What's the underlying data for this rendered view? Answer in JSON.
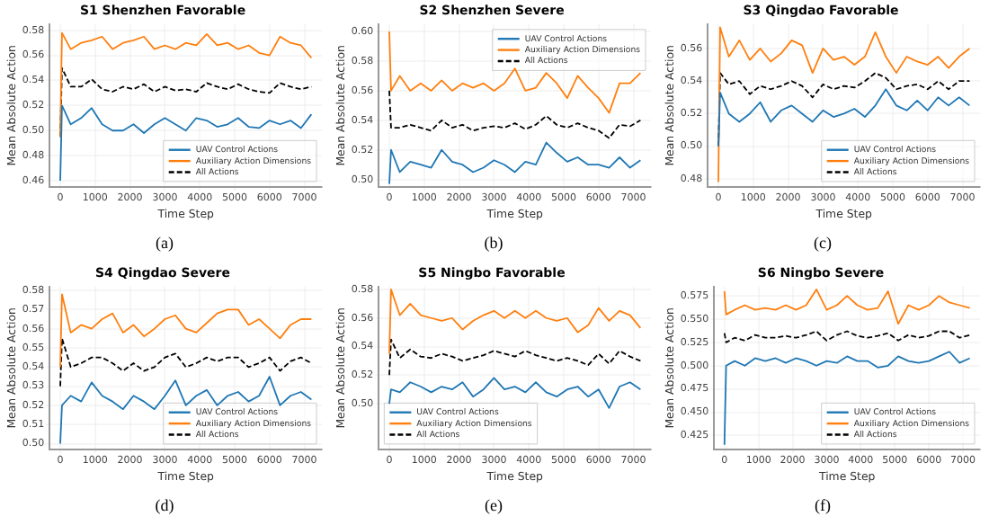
{
  "chart_data": [
    {
      "type": "line",
      "title": "S1 Shenzhen Favorable",
      "xlabel": "Time Step",
      "ylabel": "Mean Absolute Action",
      "annotations": [
        "(a)"
      ],
      "grid": true,
      "legend": "bottom right",
      "xlim": [
        -300,
        7500
      ],
      "xticks": [
        0,
        1000,
        2000,
        3000,
        4000,
        5000,
        6000,
        7000
      ],
      "ylim": [
        0.455,
        0.585
      ],
      "yticks": [
        0.46,
        0.48,
        {
          "value": 0.5,
          "label": "0.50"
        },
        0.52,
        0.54,
        0.56,
        0.58
      ],
      "x": [
        0,
        50,
        300,
        600,
        900,
        1200,
        1500,
        1800,
        2100,
        2400,
        2700,
        3000,
        3300,
        3600,
        3900,
        4200,
        4500,
        4800,
        5100,
        5400,
        5700,
        6000,
        6300,
        6600,
        6900,
        7200
      ],
      "series": [
        {
          "name": "UAV Control Actions",
          "color": "#1f77b4",
          "values": [
            0.46,
            0.52,
            0.505,
            0.51,
            0.518,
            0.505,
            0.5,
            0.5,
            0.505,
            0.498,
            0.505,
            0.51,
            0.505,
            0.5,
            0.51,
            0.508,
            0.503,
            0.505,
            0.51,
            0.503,
            0.502,
            0.508,
            0.505,
            0.508,
            0.502,
            0.513
          ]
        },
        {
          "name": "Auxiliary Action Dimensions",
          "color": "#ff7f0e",
          "values": [
            0.495,
            0.578,
            0.565,
            0.57,
            0.572,
            0.575,
            0.565,
            0.57,
            0.572,
            0.575,
            0.565,
            0.568,
            0.565,
            0.57,
            0.568,
            0.577,
            0.568,
            0.57,
            0.565,
            0.568,
            0.562,
            0.56,
            0.575,
            0.57,
            0.568,
            0.558
          ]
        },
        {
          "name": "All Actions",
          "color": "#000000",
          "line_style": "dashed",
          "values": [
            0.495,
            0.55,
            0.535,
            0.535,
            0.541,
            0.533,
            0.531,
            0.535,
            0.533,
            0.537,
            0.531,
            0.535,
            0.532,
            0.533,
            0.531,
            0.538,
            0.535,
            0.533,
            0.537,
            0.533,
            0.531,
            0.53,
            0.538,
            0.535,
            0.533,
            0.535
          ]
        }
      ]
    },
    {
      "type": "line",
      "title": "S2 Shenzhen Severe",
      "xlabel": "Time Step",
      "ylabel": "Mean Absolute Action",
      "annotations": [
        "(b)"
      ],
      "grid": true,
      "legend": "top right",
      "xlim": [
        -300,
        7500
      ],
      "xticks": [
        0,
        1000,
        2000,
        3000,
        4000,
        5000,
        6000,
        7000
      ],
      "ylim": [
        0.495,
        0.605
      ],
      "yticks": [
        {
          "value": 0.5,
          "label": "0.50"
        },
        0.52,
        0.54,
        0.56,
        0.58,
        {
          "value": 0.6,
          "label": "0.60"
        }
      ],
      "x": [
        0,
        50,
        300,
        600,
        900,
        1200,
        1500,
        1800,
        2100,
        2400,
        2700,
        3000,
        3300,
        3600,
        3900,
        4200,
        4500,
        4800,
        5100,
        5400,
        5700,
        6000,
        6300,
        6600,
        6900,
        7200
      ],
      "series": [
        {
          "name": "UAV Control Actions",
          "color": "#1f77b4",
          "values": [
            0.497,
            0.52,
            0.505,
            0.512,
            0.51,
            0.508,
            0.52,
            0.512,
            0.51,
            0.505,
            0.508,
            0.513,
            0.51,
            0.505,
            0.512,
            0.51,
            0.525,
            0.518,
            0.512,
            0.515,
            0.51,
            0.51,
            0.508,
            0.515,
            0.508,
            0.513
          ]
        },
        {
          "name": "Auxiliary Action Dimensions",
          "color": "#ff7f0e",
          "values": [
            0.6,
            0.56,
            0.57,
            0.56,
            0.565,
            0.56,
            0.567,
            0.56,
            0.565,
            0.562,
            0.565,
            0.56,
            0.565,
            0.575,
            0.56,
            0.562,
            0.572,
            0.565,
            0.555,
            0.57,
            0.562,
            0.555,
            0.545,
            0.565,
            0.565,
            0.572
          ]
        },
        {
          "name": "All Actions",
          "color": "#000000",
          "line_style": "dashed",
          "values": [
            0.56,
            0.535,
            0.535,
            0.537,
            0.535,
            0.533,
            0.54,
            0.535,
            0.537,
            0.533,
            0.535,
            0.536,
            0.535,
            0.538,
            0.534,
            0.537,
            0.543,
            0.537,
            0.535,
            0.538,
            0.535,
            0.533,
            0.528,
            0.537,
            0.536,
            0.54
          ]
        }
      ]
    },
    {
      "type": "line",
      "title": "S3 Qingdao Favorable",
      "xlabel": "Time Step",
      "ylabel": "Mean Absolute Action",
      "annotations": [
        "(c)"
      ],
      "grid": true,
      "legend": "bottom right",
      "xlim": [
        -300,
        7500
      ],
      "xticks": [
        0,
        1000,
        2000,
        3000,
        4000,
        5000,
        6000,
        7000
      ],
      "ylim": [
        0.475,
        0.575
      ],
      "yticks": [
        0.48,
        {
          "value": 0.5,
          "label": "0.50"
        },
        0.52,
        0.54,
        0.56
      ],
      "x": [
        0,
        50,
        300,
        600,
        900,
        1200,
        1500,
        1800,
        2100,
        2400,
        2700,
        3000,
        3300,
        3600,
        3900,
        4200,
        4500,
        4800,
        5100,
        5400,
        5700,
        6000,
        6300,
        6600,
        6900,
        7200
      ],
      "series": [
        {
          "name": "UAV Control Actions",
          "color": "#1f77b4",
          "values": [
            0.5,
            0.533,
            0.52,
            0.515,
            0.52,
            0.527,
            0.515,
            0.522,
            0.525,
            0.52,
            0.515,
            0.522,
            0.518,
            0.52,
            0.523,
            0.518,
            0.525,
            0.535,
            0.525,
            0.522,
            0.528,
            0.522,
            0.53,
            0.525,
            0.53,
            0.525
          ]
        },
        {
          "name": "Auxiliary Action Dimensions",
          "color": "#ff7f0e",
          "values": [
            0.478,
            0.573,
            0.555,
            0.565,
            0.553,
            0.56,
            0.552,
            0.557,
            0.565,
            0.562,
            0.545,
            0.56,
            0.553,
            0.555,
            0.55,
            0.555,
            0.57,
            0.555,
            0.545,
            0.555,
            0.552,
            0.55,
            0.555,
            0.548,
            0.555,
            0.56
          ]
        },
        {
          "name": "All Actions",
          "color": "#000000",
          "line_style": "dashed",
          "values": [
            0.5,
            0.545,
            0.538,
            0.54,
            0.532,
            0.537,
            0.535,
            0.537,
            0.54,
            0.537,
            0.53,
            0.538,
            0.535,
            0.537,
            0.536,
            0.54,
            0.545,
            0.542,
            0.535,
            0.537,
            0.538,
            0.535,
            0.54,
            0.535,
            0.54,
            0.54
          ]
        }
      ]
    },
    {
      "type": "line",
      "title": "S4 Qingdao Severe",
      "xlabel": "Time Step",
      "ylabel": "Mean Absolute Action",
      "annotations": [
        "(d)"
      ],
      "grid": true,
      "legend": "bottom right",
      "xlim": [
        -300,
        7500
      ],
      "xticks": [
        0,
        1000,
        2000,
        3000,
        4000,
        5000,
        6000,
        7000
      ],
      "ylim": [
        0.497,
        0.582
      ],
      "yticks": [
        {
          "value": 0.5,
          "label": "0.50"
        },
        0.51,
        0.52,
        0.53,
        0.54,
        0.55,
        0.56,
        0.57,
        0.58
      ],
      "x": [
        0,
        50,
        300,
        600,
        900,
        1200,
        1500,
        1800,
        2100,
        2400,
        2700,
        3000,
        3300,
        3600,
        3900,
        4200,
        4500,
        4800,
        5100,
        5400,
        5700,
        6000,
        6300,
        6600,
        6900,
        7200
      ],
      "series": [
        {
          "name": "UAV Control Actions",
          "color": "#1f77b4",
          "values": [
            0.5,
            0.52,
            0.525,
            0.522,
            0.532,
            0.525,
            0.522,
            0.518,
            0.525,
            0.522,
            0.518,
            0.525,
            0.533,
            0.52,
            0.525,
            0.528,
            0.52,
            0.525,
            0.527,
            0.522,
            0.525,
            0.535,
            0.52,
            0.525,
            0.527,
            0.523
          ]
        },
        {
          "name": "Auxiliary Action Dimensions",
          "color": "#ff7f0e",
          "values": [
            0.54,
            0.578,
            0.558,
            0.562,
            0.56,
            0.565,
            0.568,
            0.558,
            0.562,
            0.556,
            0.56,
            0.565,
            0.567,
            0.56,
            0.558,
            0.563,
            0.568,
            0.57,
            0.57,
            0.562,
            0.565,
            0.56,
            0.555,
            0.562,
            0.565,
            0.565
          ]
        },
        {
          "name": "All Actions",
          "color": "#000000",
          "line_style": "dashed",
          "values": [
            0.53,
            0.555,
            0.54,
            0.542,
            0.545,
            0.545,
            0.542,
            0.538,
            0.542,
            0.538,
            0.54,
            0.545,
            0.547,
            0.54,
            0.542,
            0.545,
            0.543,
            0.545,
            0.545,
            0.54,
            0.542,
            0.545,
            0.538,
            0.543,
            0.545,
            0.542
          ]
        }
      ]
    },
    {
      "type": "line",
      "title": "S5 Ningbo Favorable",
      "xlabel": "Time Step",
      "ylabel": "Mean Absolute Action",
      "annotations": [
        "(e)"
      ],
      "grid": true,
      "legend": "bottom left",
      "xlim": [
        -300,
        7500
      ],
      "xticks": [
        0,
        1000,
        2000,
        3000,
        4000,
        5000,
        6000,
        7000
      ],
      "ylim": [
        0.468,
        0.582
      ],
      "yticks": [
        {
          "value": 0.5,
          "label": "0.50"
        },
        0.52,
        0.54,
        0.56,
        0.58
      ],
      "x": [
        0,
        50,
        300,
        600,
        900,
        1200,
        1500,
        1800,
        2100,
        2400,
        2700,
        3000,
        3300,
        3600,
        3900,
        4200,
        4500,
        4800,
        5100,
        5400,
        5700,
        6000,
        6300,
        6600,
        6900,
        7200
      ],
      "series": [
        {
          "name": "UAV Control Actions",
          "color": "#1f77b4",
          "values": [
            0.5,
            0.51,
            0.508,
            0.515,
            0.512,
            0.508,
            0.512,
            0.51,
            0.515,
            0.505,
            0.51,
            0.518,
            0.51,
            0.512,
            0.508,
            0.515,
            0.508,
            0.505,
            0.51,
            0.512,
            0.505,
            0.51,
            0.497,
            0.512,
            0.515,
            0.51
          ]
        },
        {
          "name": "Auxiliary Action Dimensions",
          "color": "#ff7f0e",
          "values": [
            0.535,
            0.58,
            0.562,
            0.57,
            0.562,
            0.56,
            0.558,
            0.56,
            0.552,
            0.558,
            0.562,
            0.565,
            0.56,
            0.565,
            0.56,
            0.565,
            0.56,
            0.558,
            0.56,
            0.55,
            0.555,
            0.567,
            0.558,
            0.565,
            0.562,
            0.553
          ]
        },
        {
          "name": "All Actions",
          "color": "#000000",
          "line_style": "dashed",
          "values": [
            0.52,
            0.545,
            0.532,
            0.538,
            0.533,
            0.532,
            0.535,
            0.533,
            0.53,
            0.532,
            0.534,
            0.537,
            0.535,
            0.533,
            0.537,
            0.534,
            0.532,
            0.53,
            0.532,
            0.53,
            0.527,
            0.535,
            0.528,
            0.537,
            0.533,
            0.53
          ]
        }
      ]
    },
    {
      "type": "line",
      "title": "S6 Ningbo Severe",
      "xlabel": "Time Step",
      "ylabel": "Mean Absolute Action",
      "annotations": [
        "(f)"
      ],
      "grid": true,
      "legend": "bottom right",
      "xlim": [
        -300,
        7500
      ],
      "xticks": [
        0,
        1000,
        2000,
        3000,
        4000,
        5000,
        6000,
        7000
      ],
      "ylim": [
        0.41,
        0.585
      ],
      "yticks": [
        0.425,
        {
          "value": 0.45,
          "label": "0.450"
        },
        0.475,
        {
          "value": 0.5,
          "label": "0.500"
        },
        0.525,
        {
          "value": 0.55,
          "label": "0.550"
        },
        0.575
      ],
      "x": [
        0,
        50,
        300,
        600,
        900,
        1200,
        1500,
        1800,
        2100,
        2400,
        2700,
        3000,
        3300,
        3600,
        3900,
        4200,
        4500,
        4800,
        5100,
        5400,
        5700,
        6000,
        6300,
        6600,
        6900,
        7200
      ],
      "series": [
        {
          "name": "UAV Control Actions",
          "color": "#1f77b4",
          "values": [
            0.415,
            0.5,
            0.505,
            0.5,
            0.508,
            0.505,
            0.508,
            0.503,
            0.508,
            0.505,
            0.5,
            0.505,
            0.503,
            0.51,
            0.505,
            0.505,
            0.498,
            0.5,
            0.51,
            0.505,
            0.503,
            0.505,
            0.51,
            0.515,
            0.503,
            0.508
          ]
        },
        {
          "name": "Auxiliary Action Dimensions",
          "color": "#ff7f0e",
          "values": [
            0.58,
            0.555,
            0.56,
            0.565,
            0.56,
            0.562,
            0.56,
            0.565,
            0.56,
            0.565,
            0.582,
            0.56,
            0.565,
            0.575,
            0.565,
            0.56,
            0.562,
            0.58,
            0.545,
            0.565,
            0.56,
            0.565,
            0.575,
            0.568,
            0.565,
            0.562
          ]
        },
        {
          "name": "All Actions",
          "color": "#000000",
          "line_style": "dashed",
          "values": [
            0.535,
            0.525,
            0.53,
            0.527,
            0.533,
            0.53,
            0.53,
            0.532,
            0.53,
            0.533,
            0.537,
            0.527,
            0.533,
            0.537,
            0.532,
            0.53,
            0.532,
            0.535,
            0.527,
            0.533,
            0.53,
            0.532,
            0.537,
            0.537,
            0.53,
            0.533
          ]
        }
      ]
    }
  ]
}
